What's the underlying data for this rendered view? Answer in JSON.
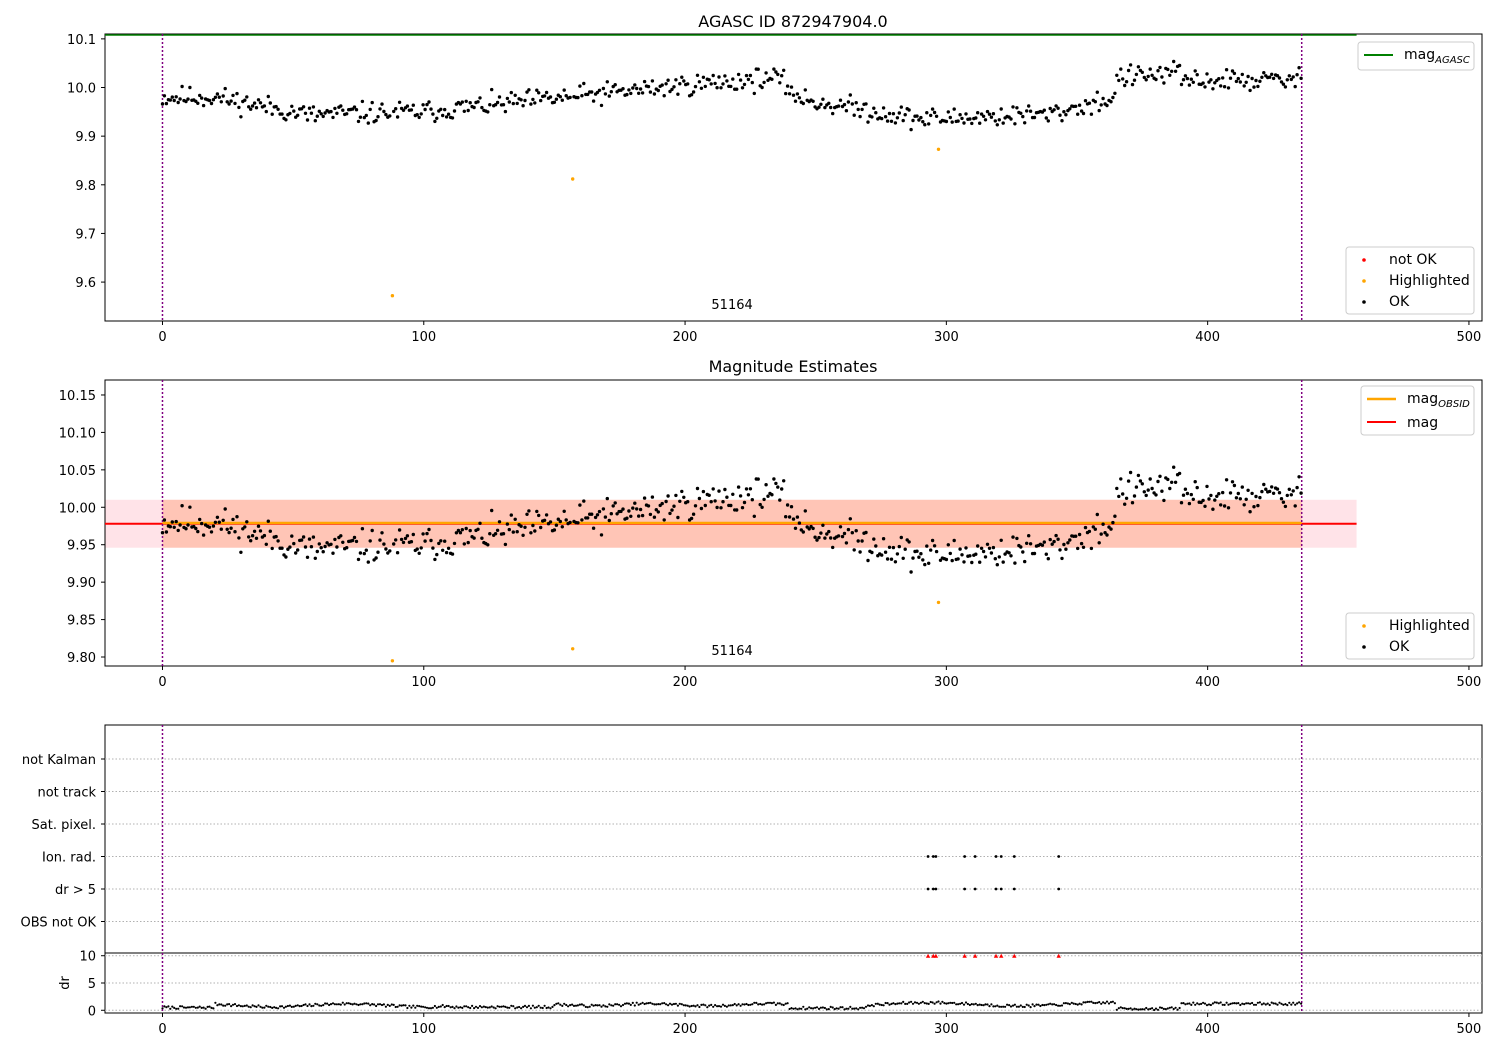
{
  "colors": {
    "ok": "#000000",
    "highlighted": "#ffa500",
    "not_ok": "#ff0000",
    "mag_agasc": "#008000",
    "mag_obsid": "#ffa500",
    "mag": "#ff0000",
    "band_mag": "#ffc0cb",
    "band_obsid": "#ffa07a",
    "obs_boundary": "#800080",
    "grid": "#b0b0b0"
  },
  "chart_data": [
    {
      "id": "agasc",
      "type": "scatter",
      "title": "AGASC ID 872947904.0",
      "xlim": [
        -22,
        505
      ],
      "ylim": [
        9.52,
        10.11
      ],
      "xticks": [
        0,
        100,
        200,
        300,
        400,
        500
      ],
      "yticks": [
        9.6,
        9.7,
        9.8,
        9.9,
        10.0,
        10.1
      ],
      "ytick_labels": [
        "9.6",
        "9.7",
        "9.8",
        "9.9",
        "10.0",
        "10.1"
      ],
      "obs_boundaries": [
        0,
        436
      ],
      "obsid_annotation": {
        "text": "51164",
        "x": 218,
        "y": 9.545
      },
      "mag_agasc": {
        "value": 10.108,
        "x_range": [
          -22,
          457
        ]
      },
      "highlighted_points": [
        [
          88,
          9.572
        ],
        [
          157,
          9.812
        ],
        [
          297,
          9.873
        ]
      ],
      "legend_lines": [
        {
          "label": "mag",
          "sub": "AGASC",
          "color": "#008000"
        }
      ],
      "legend_points": [
        {
          "label": "not OK",
          "color": "#ff0000"
        },
        {
          "label": "Highlighted",
          "color": "#ffa500"
        },
        {
          "label": "OK",
          "color": "#000000"
        }
      ],
      "series": [
        {
          "name": "OK",
          "seed": 11
        }
      ]
    },
    {
      "id": "estimates",
      "type": "scatter",
      "title": "Magnitude Estimates",
      "xlim": [
        -22,
        505
      ],
      "ylim": [
        9.788,
        10.17
      ],
      "xticks": [
        0,
        100,
        200,
        300,
        400,
        500
      ],
      "yticks": [
        9.8,
        9.85,
        9.9,
        9.95,
        10.0,
        10.05,
        10.1,
        10.15
      ],
      "ytick_labels": [
        "9.80",
        "9.85",
        "9.90",
        "9.95",
        "10.00",
        "10.05",
        "10.10",
        "10.15"
      ],
      "obs_boundaries": [
        0,
        436
      ],
      "obsid_annotation": {
        "text": "51164",
        "x": 218,
        "y": 9.803
      },
      "mag": {
        "value": 9.978,
        "band": [
          9.946,
          10.01
        ],
        "x_range": [
          -22,
          457
        ]
      },
      "mag_obsid": {
        "value": 9.979,
        "band": [
          9.946,
          10.01
        ],
        "x_range": [
          0,
          436
        ]
      },
      "highlighted_points": [
        [
          88,
          9.795
        ],
        [
          157,
          9.811
        ],
        [
          297,
          9.873
        ]
      ],
      "legend_lines": [
        {
          "label": "mag",
          "sub": "OBSID",
          "color": "#ffa500"
        },
        {
          "label": "mag",
          "sub": "",
          "color": "#ff0000"
        }
      ],
      "legend_points": [
        {
          "label": "Highlighted",
          "color": "#ffa500"
        },
        {
          "label": "OK",
          "color": "#000000"
        }
      ],
      "series": [
        {
          "name": "OK",
          "seed": 11
        }
      ]
    },
    {
      "id": "flags",
      "type": "scatter",
      "xlim": [
        -22,
        505
      ],
      "xticks": [
        0,
        100,
        200,
        300,
        400,
        500
      ],
      "obs_boundaries": [
        0,
        436
      ],
      "flag_rows": [
        "not Kalman",
        "not track",
        "Sat. pixel.",
        "Ion. rad.",
        "dr > 5",
        "OBS not OK"
      ],
      "flagged_times": [
        293,
        295,
        296,
        307,
        311,
        319,
        321,
        326,
        343
      ],
      "flag_series": [
        {
          "row": "Ion. rad.",
          "times": [
            293,
            295,
            296,
            307,
            311,
            319,
            321,
            326,
            343
          ]
        },
        {
          "row": "dr > 5",
          "times": [
            293,
            295,
            296,
            307,
            311,
            319,
            321,
            326,
            343
          ]
        }
      ]
    },
    {
      "id": "dr",
      "type": "scatter",
      "ylabel": "dr",
      "xlim": [
        -22,
        505
      ],
      "ylim": [
        -0.5,
        10.5
      ],
      "xticks": [
        0,
        100,
        200,
        300,
        400,
        500
      ],
      "yticks": [
        0,
        5,
        10
      ],
      "ytick_labels": [
        "0",
        "5",
        "10"
      ],
      "obs_boundaries": [
        0,
        436
      ],
      "clipped_value": 10,
      "clipped_times": [
        293,
        295,
        296,
        307,
        311,
        319,
        321,
        326,
        343
      ],
      "series": [
        {
          "name": "dr",
          "seed": 7
        }
      ]
    }
  ],
  "xtick_labels": [
    "0",
    "100",
    "200",
    "300",
    "400",
    "500"
  ]
}
